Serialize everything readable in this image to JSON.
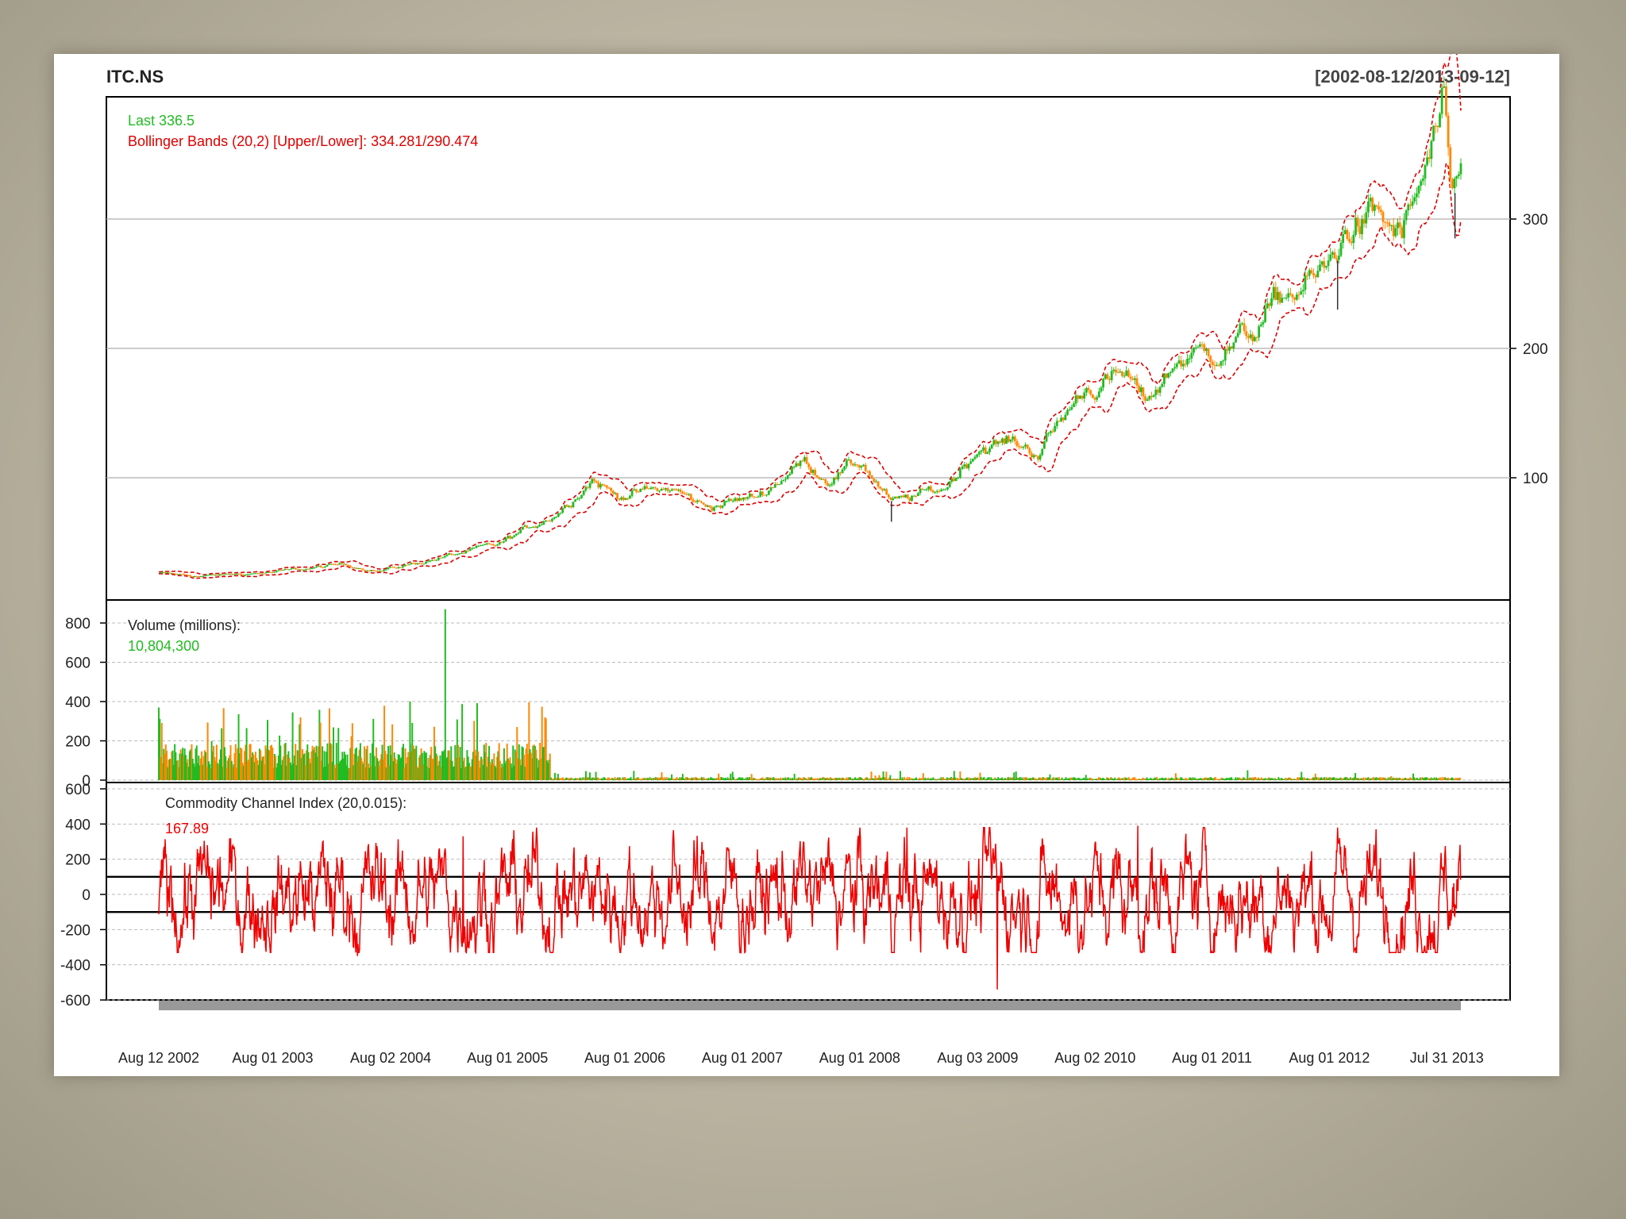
{
  "chart_data": {
    "type": "candlestick",
    "symbol": "ITC.NS",
    "date_range": "[2002-08-12/2013-09-12]",
    "x_tick_labels": [
      "Aug 12 2002",
      "Aug 01 2003",
      "Aug 02 2004",
      "Aug 01 2005",
      "Aug 01 2006",
      "Aug 01 2007",
      "Aug 01 2008",
      "Aug 03 2009",
      "Aug 02 2010",
      "Aug 01 2011",
      "Aug 01 2012",
      "Jul 31 2013"
    ],
    "colors": {
      "up": "#22bb22",
      "down": "#ff8800",
      "bands": "#dd0000",
      "cci": "#ee0000",
      "grid": "#bbbbbb"
    },
    "price_panel": {
      "last_label": "Last 336.5",
      "bbands_label": "Bollinger Bands (20,2) [Upper/Lower]: 334.281/290.474",
      "y_ticks": [
        100,
        200,
        300
      ],
      "ylim": [
        0,
        390
      ],
      "price_path": [
        {
          "year": 2002.61,
          "price": 26
        },
        {
          "year": 2003.0,
          "price": 24
        },
        {
          "year": 2003.6,
          "price": 27
        },
        {
          "year": 2004.2,
          "price": 33
        },
        {
          "year": 2004.5,
          "price": 28
        },
        {
          "year": 2004.9,
          "price": 36
        },
        {
          "year": 2005.5,
          "price": 48
        },
        {
          "year": 2006.0,
          "price": 73
        },
        {
          "year": 2006.3,
          "price": 100
        },
        {
          "year": 2006.5,
          "price": 87
        },
        {
          "year": 2007.0,
          "price": 91
        },
        {
          "year": 2007.25,
          "price": 78
        },
        {
          "year": 2007.7,
          "price": 85
        },
        {
          "year": 2008.1,
          "price": 113
        },
        {
          "year": 2008.3,
          "price": 100
        },
        {
          "year": 2008.6,
          "price": 112
        },
        {
          "year": 2008.85,
          "price": 80
        },
        {
          "year": 2009.3,
          "price": 92
        },
        {
          "year": 2009.6,
          "price": 125
        },
        {
          "year": 2009.9,
          "price": 127
        },
        {
          "year": 2010.1,
          "price": 120
        },
        {
          "year": 2010.5,
          "price": 170
        },
        {
          "year": 2010.85,
          "price": 178
        },
        {
          "year": 2011.0,
          "price": 158
        },
        {
          "year": 2011.3,
          "price": 192
        },
        {
          "year": 2011.6,
          "price": 198
        },
        {
          "year": 2011.9,
          "price": 210
        },
        {
          "year": 2012.2,
          "price": 240
        },
        {
          "year": 2012.55,
          "price": 258
        },
        {
          "year": 2012.75,
          "price": 295
        },
        {
          "year": 2013.0,
          "price": 300
        },
        {
          "year": 2013.2,
          "price": 285
        },
        {
          "year": 2013.4,
          "price": 335
        },
        {
          "year": 2013.55,
          "price": 380
        },
        {
          "year": 2013.62,
          "price": 300
        },
        {
          "year": 2013.7,
          "price": 336.5
        }
      ]
    },
    "volume_panel": {
      "title": "Volume (millions):",
      "value": "10,804,300",
      "y_ticks": [
        0,
        200,
        400,
        600,
        800
      ],
      "ylim": [
        0,
        880
      ],
      "description": "~150M average daily volume Aug 2002 - Dec 2005 (spikes to ~400M, max ~870M near Jan 2005), then ~10M thereafter"
    },
    "cci_panel": {
      "title": "Commodity Channel Index (20,0.015):",
      "value": "167.89",
      "y_ticks": [
        -600,
        -400,
        -200,
        0,
        200,
        400,
        600
      ],
      "ylim": [
        -600,
        600
      ],
      "reference_lines": [
        -100,
        100
      ]
    }
  }
}
